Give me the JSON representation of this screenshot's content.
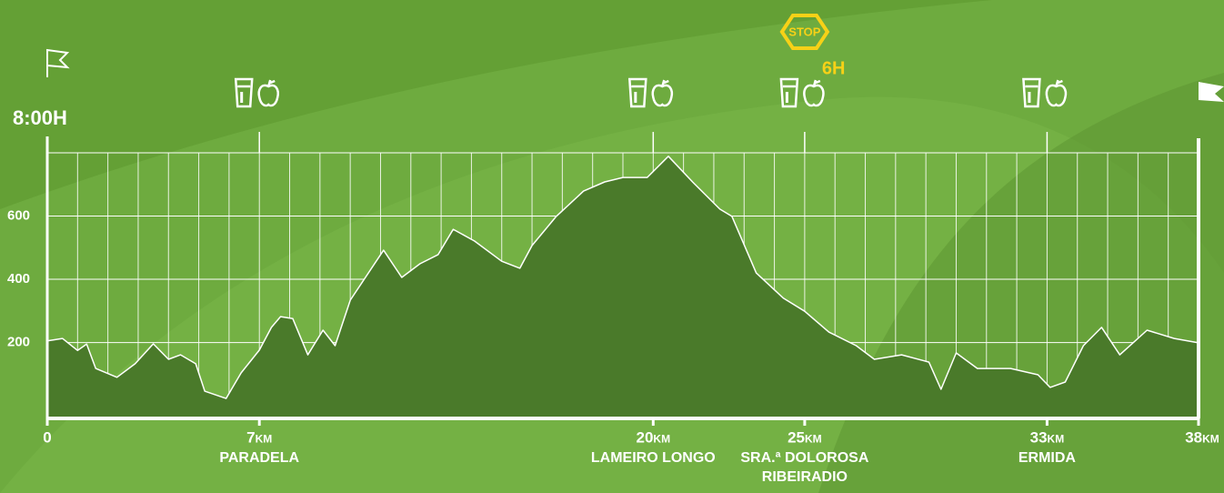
{
  "chart_data": {
    "type": "area",
    "start_time": "8:00H",
    "cutoff_time": "6H",
    "cutoff_sign": "STOP",
    "cutoff_at": 25,
    "xlim": [
      0,
      38
    ],
    "ylim": [
      -40,
      800
    ],
    "yticks": [
      200,
      400,
      600
    ],
    "xgrid": [
      0,
      1,
      2,
      3,
      4,
      5,
      6,
      7,
      8,
      9,
      10,
      11,
      12,
      13,
      14,
      15,
      16,
      17,
      18,
      19,
      20,
      21,
      22,
      23,
      24,
      25,
      26,
      27,
      28,
      29,
      30,
      31,
      32,
      33,
      34,
      35,
      36,
      37,
      38
    ],
    "xticks": [
      0,
      {
        "value": 7,
        "label": "7km"
      },
      {
        "value": 20,
        "label": "20km"
      },
      {
        "value": 25,
        "label": "25km"
      },
      {
        "value": 33,
        "label": "33km"
      },
      {
        "value": 38,
        "label": "38km"
      }
    ],
    "places": [
      {
        "value": 7,
        "lines": [
          "Paradela"
        ]
      },
      {
        "value": 20,
        "lines": [
          "Lameiro Longo"
        ]
      },
      {
        "value": 25,
        "lines": [
          "Sra.ª Dolorosa",
          "Ribeiradio"
        ]
      },
      {
        "value": 33,
        "lines": [
          "Ermida"
        ]
      }
    ],
    "x": [
      0,
      0.5,
      1.0,
      1.3,
      1.6,
      2.3,
      2.9,
      3.5,
      4.0,
      4.4,
      4.9,
      5.2,
      5.9,
      6.4,
      7.0,
      7.4,
      7.7,
      8.1,
      8.6,
      9.1,
      9.5,
      10.0,
      11.1,
      11.7,
      12.3,
      12.9,
      13.4,
      14.1,
      15.0,
      15.6,
      16.0,
      16.8,
      17.7,
      18.4,
      19.0,
      19.8,
      20.5,
      21.3,
      22.2,
      22.6,
      23.4,
      24.3,
      25.0,
      25.8,
      26.7,
      27.3,
      28.2,
      29.1,
      29.5,
      30.0,
      30.7,
      31.8,
      32.7,
      33.1,
      33.6,
      34.2,
      34.8,
      35.4,
      36.3,
      37.2,
      38.0
    ],
    "series": [
      {
        "color": "#4a7a2a",
        "values": [
          205,
          213,
          175,
          195,
          118,
          90,
          133,
          196,
          147,
          161,
          133,
          46,
          23,
          104,
          176,
          248,
          282,
          276,
          161,
          239,
          190,
          334,
          492,
          406,
          449,
          478,
          558,
          521,
          457,
          435,
          507,
          599,
          679,
          708,
          722,
          722,
          789,
          708,
          622,
          599,
          420,
          340,
          299,
          233,
          190,
          147,
          161,
          138,
          52,
          167,
          118,
          118,
          98,
          58,
          75,
          190,
          248,
          161,
          239,
          213,
          199
        ]
      }
    ]
  }
}
